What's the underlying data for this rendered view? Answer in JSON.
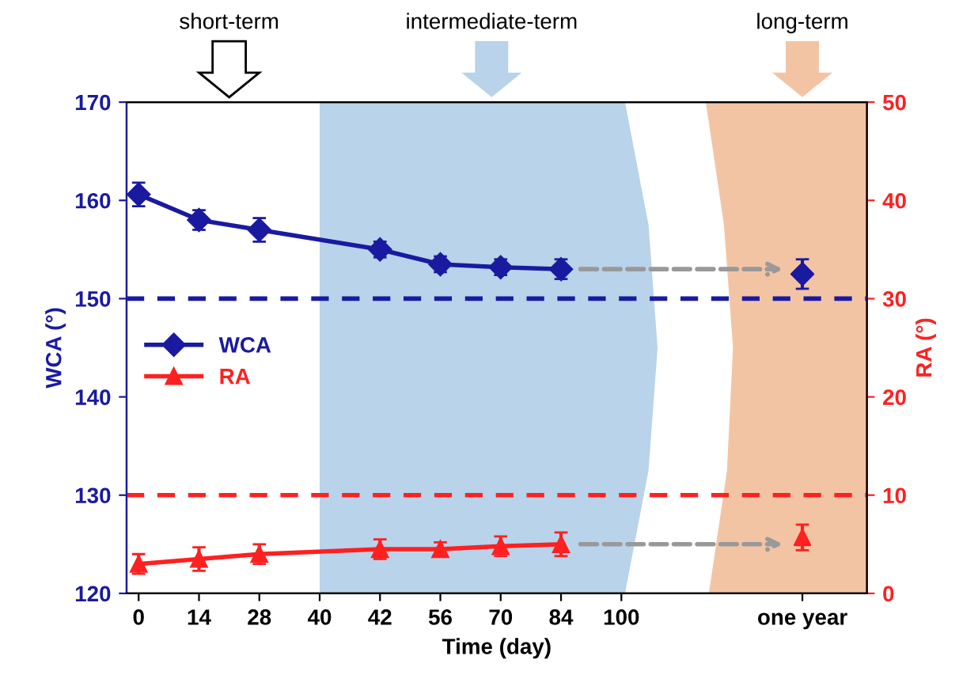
{
  "chart_data": {
    "type": "line",
    "xlabel": "Time (day)",
    "ylabel": "WCA (°)",
    "y2label": "RA (°)",
    "categories": [
      "0",
      "14",
      "28",
      "40",
      "42",
      "56",
      "70",
      "84",
      "100",
      null,
      null,
      "one year"
    ],
    "ylim": [
      120,
      170
    ],
    "yticks": [
      120,
      130,
      140,
      150,
      160,
      170
    ],
    "y2lim": [
      0,
      50
    ],
    "y2ticks": [
      0,
      10,
      20,
      30,
      40,
      50
    ],
    "line_style": "solid",
    "legend": "left",
    "grid": false,
    "series": [
      {
        "name": "WCA",
        "color": "#1a1aa0",
        "marker": "diamond",
        "values": [
          160.6,
          158,
          157,
          null,
          155,
          153.5,
          153.2,
          153,
          null,
          null,
          null,
          null
        ],
        "errors": [
          1.2,
          1,
          1.2,
          null,
          0.8,
          0.8,
          0.8,
          1,
          null,
          null,
          null,
          null
        ]
      },
      {
        "type": "scatter",
        "color": "#1a1aa0",
        "marker": "diamond",
        "values": [
          null,
          null,
          null,
          null,
          null,
          null,
          null,
          null,
          null,
          null,
          null,
          152.5
        ],
        "errors": [
          null,
          null,
          null,
          null,
          null,
          null,
          null,
          null,
          null,
          null,
          null,
          1.5
        ]
      },
      {
        "name": "RA",
        "color": "#ff2020",
        "marker": "triangle",
        "axis": "y2",
        "values": [
          3,
          3.5,
          4,
          null,
          4.5,
          4.5,
          4.8,
          5,
          null,
          null,
          null,
          null
        ],
        "errors": [
          1,
          1.2,
          1,
          null,
          1,
          0.7,
          1,
          1.2,
          null,
          null,
          null,
          null
        ]
      },
      {
        "type": "scatter",
        "color": "#ff2020",
        "marker": "triangle",
        "axis": "y2",
        "values": [
          null,
          null,
          null,
          null,
          null,
          null,
          null,
          null,
          null,
          null,
          null,
          5.7
        ],
        "errors": [
          null,
          null,
          null,
          null,
          null,
          null,
          null,
          null,
          null,
          null,
          null,
          1.3
        ]
      }
    ],
    "ref_lines": [
      {
        "axis": "y",
        "value": 150,
        "color": "#1a1aa0",
        "line_style": "dashed"
      },
      {
        "axis": "y2",
        "value": 10,
        "color": "#ff2020",
        "line_style": "dashed"
      }
    ],
    "annotations": [
      "short-term",
      "intermediate-term",
      "long-term"
    ]
  }
}
